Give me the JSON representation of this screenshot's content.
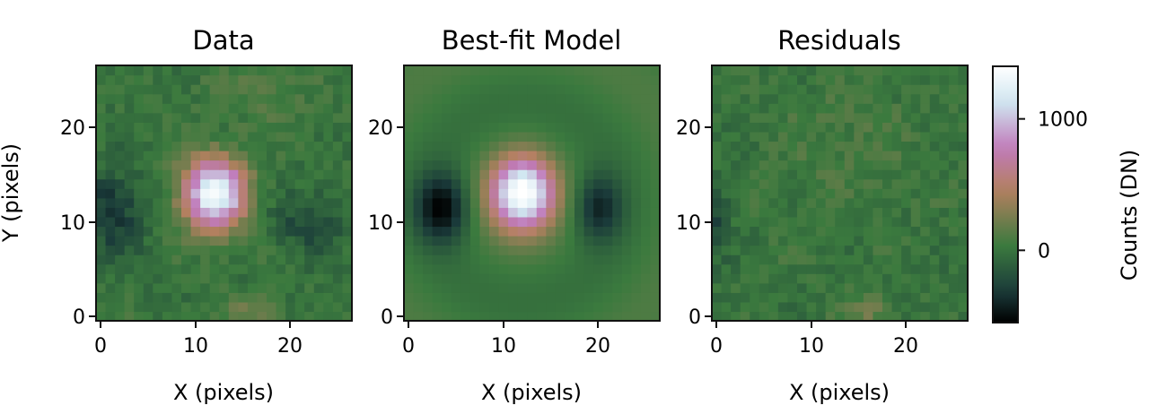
{
  "chart_data": [
    {
      "type": "heatmap",
      "title": "Data",
      "xlabel": "X (pixels)",
      "ylabel": "Y (pixels)",
      "xlim": [
        -0.5,
        26.5
      ],
      "ylim": [
        -0.5,
        26.5
      ],
      "xticks": [
        0,
        10,
        20
      ],
      "yticks": [
        0,
        10,
        20
      ],
      "grid_size": [
        27,
        27
      ],
      "features": [
        {
          "kind": "peak",
          "x": 12,
          "y": 13,
          "amplitude": 1400
        },
        {
          "kind": "trough",
          "x": 1,
          "y": 11,
          "amplitude": -350
        },
        {
          "kind": "trough",
          "x": 22,
          "y": 10,
          "amplitude": -250
        },
        {
          "kind": "blob",
          "x": 16,
          "y": 0.5,
          "amplitude": 220
        }
      ]
    },
    {
      "type": "heatmap",
      "title": "Best-fit Model",
      "xlabel": "X (pixels)",
      "ylabel": "",
      "xlim": [
        -0.5,
        26.5
      ],
      "ylim": [
        -0.5,
        26.5
      ],
      "xticks": [
        0,
        10,
        20
      ],
      "yticks": [
        0,
        10,
        20
      ],
      "grid_size": [
        27,
        27
      ],
      "features": [
        {
          "kind": "peak",
          "x": 12,
          "y": 13,
          "amplitude": 1400
        },
        {
          "kind": "trough",
          "x": 3.5,
          "y": 11.5,
          "amplitude": -550
        },
        {
          "kind": "trough",
          "x": 20,
          "y": 11.5,
          "amplitude": -420
        }
      ]
    },
    {
      "type": "heatmap",
      "title": "Residuals",
      "xlabel": "X (pixels)",
      "ylabel": "",
      "xlim": [
        -0.5,
        26.5
      ],
      "ylim": [
        -0.5,
        26.5
      ],
      "xticks": [
        0,
        10,
        20
      ],
      "yticks": [
        0,
        10,
        20
      ],
      "grid_size": [
        27,
        27
      ],
      "features": [
        {
          "kind": "blob",
          "x": 16,
          "y": 0.5,
          "amplitude": 220
        },
        {
          "kind": "trough",
          "x": 0,
          "y": 10,
          "amplitude": -250
        }
      ]
    }
  ],
  "colorbar": {
    "label": "Counts (DN)",
    "range": [
      -550,
      1400
    ],
    "ticks": [
      0,
      1000
    ],
    "colormap": "cubehelix-style",
    "stops": [
      "#000000",
      "#1a3a3a",
      "#3b7a3e",
      "#b48060",
      "#c07aba",
      "#cfe6f0",
      "#ffffff"
    ]
  }
}
